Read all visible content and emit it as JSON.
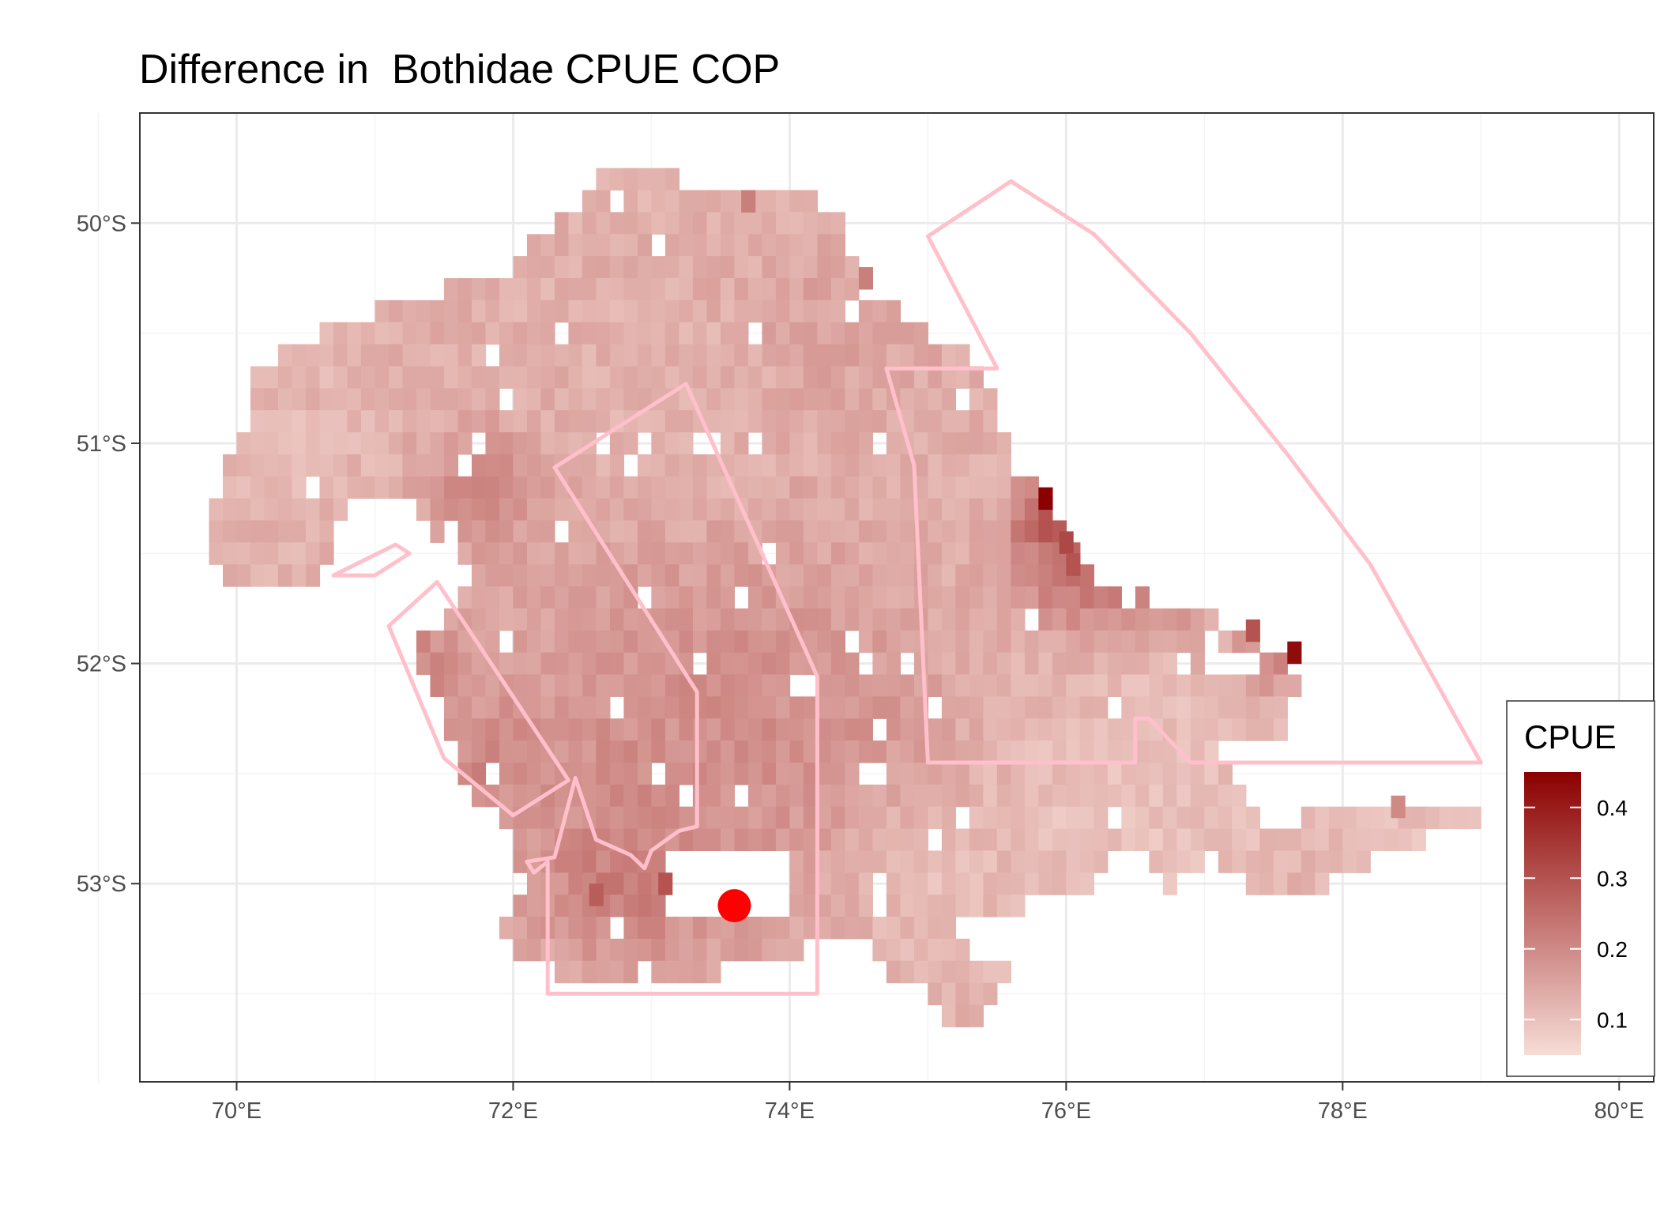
{
  "title": "Difference in  Bothidae CPUE COP",
  "x_axis": {
    "ticks": [
      {
        "value": 70,
        "label": "70°E"
      },
      {
        "value": 72,
        "label": "72°E"
      },
      {
        "value": 74,
        "label": "74°E"
      },
      {
        "value": 76,
        "label": "76°E"
      },
      {
        "value": 78,
        "label": "78°E"
      },
      {
        "value": 80,
        "label": "80°E"
      }
    ],
    "range": [
      69.3,
      80.25
    ]
  },
  "y_axis": {
    "ticks": [
      {
        "value": -50,
        "label": "50°S"
      },
      {
        "value": -51,
        "label": "51°S"
      },
      {
        "value": -52,
        "label": "52°S"
      },
      {
        "value": -53,
        "label": "53°S"
      }
    ],
    "range": [
      -53.9,
      -49.5
    ]
  },
  "legend": {
    "title": "CPUE",
    "min": 0.05,
    "max": 0.45,
    "ticks": [
      {
        "value": 0.1,
        "label": "0.1"
      },
      {
        "value": 0.2,
        "label": "0.2"
      },
      {
        "value": 0.3,
        "label": "0.3"
      },
      {
        "value": 0.4,
        "label": "0.4"
      }
    ],
    "color_low": "#f7dcd6",
    "color_high": "#8b0000",
    "position": "right"
  },
  "colors": {
    "panel_border": "#333333",
    "grid": "#ebebeb",
    "polygon_stroke": "#ffc0cb",
    "marker": "#ff0000"
  },
  "chart_data": {
    "type": "heatmap",
    "title": "Difference in  Bothidae CPUE COP",
    "xlabel": "",
    "ylabel": "",
    "xlim": [
      69.3,
      80.25
    ],
    "ylim": [
      -53.9,
      -49.5
    ],
    "value_range": [
      0.05,
      0.45
    ],
    "grid": true,
    "cell_size": {
      "lon": 0.1,
      "lat": 0.1
    },
    "cpue_field_outline": [
      [
        72.9,
        -49.7
      ],
      [
        73.2,
        -49.8
      ],
      [
        73.5,
        -49.85
      ],
      [
        73.8,
        -49.9
      ],
      [
        74.2,
        -49.9
      ],
      [
        74.4,
        -50.0
      ],
      [
        74.5,
        -50.3
      ],
      [
        74.8,
        -50.4
      ],
      [
        75.0,
        -50.5
      ],
      [
        75.3,
        -50.6
      ],
      [
        75.5,
        -50.8
      ],
      [
        75.6,
        -51.1
      ],
      [
        75.8,
        -51.2
      ],
      [
        76.0,
        -51.4
      ],
      [
        76.2,
        -51.6
      ],
      [
        76.6,
        -51.7
      ],
      [
        77.1,
        -51.8
      ],
      [
        77.5,
        -51.95
      ],
      [
        77.7,
        -52.1
      ],
      [
        77.6,
        -52.3
      ],
      [
        77.3,
        -52.4
      ],
      [
        77.7,
        -52.7
      ],
      [
        78.4,
        -52.6
      ],
      [
        79.0,
        -52.7
      ],
      [
        78.2,
        -52.9
      ],
      [
        77.8,
        -53.05
      ],
      [
        77.3,
        -53.0
      ],
      [
        76.9,
        -52.9
      ],
      [
        76.6,
        -53.2
      ],
      [
        76.0,
        -53.0
      ],
      [
        75.7,
        -53.2
      ],
      [
        75.5,
        -53.55
      ],
      [
        75.2,
        -53.7
      ],
      [
        75.0,
        -53.5
      ],
      [
        74.7,
        -53.4
      ],
      [
        74.4,
        -53.2
      ],
      [
        74.1,
        -53.3
      ],
      [
        73.9,
        -53.35
      ],
      [
        73.1,
        -53.45
      ],
      [
        72.3,
        -53.4
      ],
      [
        71.9,
        -53.25
      ],
      [
        72.1,
        -53.05
      ],
      [
        72.0,
        -52.8
      ],
      [
        71.7,
        -52.6
      ],
      [
        71.6,
        -52.4
      ],
      [
        71.4,
        -52.1
      ],
      [
        71.1,
        -52.0
      ],
      [
        71.3,
        -51.9
      ],
      [
        71.6,
        -51.75
      ],
      [
        71.7,
        -51.55
      ],
      [
        71.4,
        -51.4
      ],
      [
        71.3,
        -51.25
      ],
      [
        70.8,
        -51.3
      ],
      [
        70.6,
        -51.65
      ],
      [
        69.9,
        -51.65
      ],
      [
        69.8,
        -51.4
      ],
      [
        69.95,
        -51.1
      ],
      [
        70.1,
        -50.9
      ],
      [
        70.1,
        -50.7
      ],
      [
        70.6,
        -50.5
      ],
      [
        71.0,
        -50.4
      ],
      [
        71.5,
        -50.3
      ],
      [
        72.0,
        -50.2
      ],
      [
        72.3,
        -50.0
      ],
      [
        72.5,
        -49.9
      ],
      [
        72.7,
        -49.75
      ]
    ],
    "cpue_hotspots": [
      {
        "lon": 71.8,
        "lat": -51.2,
        "radius": 0.3,
        "value": 0.22
      },
      {
        "lon": 71.35,
        "lat": -52.0,
        "radius": 0.25,
        "value": 0.22
      },
      {
        "lon": 71.8,
        "lat": -52.45,
        "radius": 0.3,
        "value": 0.22
      },
      {
        "lon": 73.0,
        "lat": -52.6,
        "radius": 0.8,
        "value": 0.2
      },
      {
        "lon": 72.8,
        "lat": -53.0,
        "radius": 0.35,
        "value": 0.24
      },
      {
        "lon": 73.5,
        "lat": -52.1,
        "radius": 0.9,
        "value": 0.19
      },
      {
        "lon": 74.5,
        "lat": -52.5,
        "radius": 0.6,
        "value": 0.19
      },
      {
        "lon": 75.9,
        "lat": -51.35,
        "radius": 0.18,
        "value": 0.38
      },
      {
        "lon": 76.1,
        "lat": -51.6,
        "radius": 0.3,
        "value": 0.28
      },
      {
        "lon": 76.6,
        "lat": -51.7,
        "radius": 0.25,
        "value": 0.25
      },
      {
        "lon": 77.5,
        "lat": -51.95,
        "radius": 0.2,
        "value": 0.26
      },
      {
        "lon": 74.3,
        "lat": -50.5,
        "radius": 0.5,
        "value": 0.16
      },
      {
        "lon": 73.3,
        "lat": -50.9,
        "radius": 0.5,
        "value": 0.12
      },
      {
        "lon": 76.5,
        "lat": -52.6,
        "radius": 0.8,
        "value": 0.09
      },
      {
        "lon": 75.0,
        "lat": -53.0,
        "radius": 0.5,
        "value": 0.1
      },
      {
        "lon": 78.5,
        "lat": -52.8,
        "radius": 0.5,
        "value": 0.1
      },
      {
        "lon": 70.3,
        "lat": -51.0,
        "radius": 0.5,
        "value": 0.11
      }
    ],
    "cpue_isolated_cells": [
      {
        "lon": 75.85,
        "lat": -51.25,
        "value": 0.45
      },
      {
        "lon": 77.65,
        "lat": -51.95,
        "value": 0.43
      },
      {
        "lon": 77.35,
        "lat": -51.85,
        "value": 0.3
      },
      {
        "lon": 76.0,
        "lat": -51.45,
        "value": 0.32
      },
      {
        "lon": 76.05,
        "lat": -51.55,
        "value": 0.3
      },
      {
        "lon": 73.7,
        "lat": -49.9,
        "value": 0.22
      },
      {
        "lon": 74.55,
        "lat": -50.25,
        "value": 0.22
      },
      {
        "lon": 78.4,
        "lat": -52.65,
        "value": 0.2
      },
      {
        "lon": 73.1,
        "lat": -53.0,
        "value": 0.3
      },
      {
        "lon": 72.6,
        "lat": -53.05,
        "value": 0.28
      }
    ],
    "cpue_gaps": [
      [
        [
          71.45,
          -51.35
        ],
        [
          71.45,
          -51.7
        ],
        [
          71.2,
          -51.7
        ],
        [
          70.95,
          -51.6
        ],
        [
          71.2,
          -51.45
        ]
      ],
      [
        [
          71.3,
          -51.95
        ],
        [
          71.3,
          -52.25
        ],
        [
          71.1,
          -52.15
        ],
        [
          71.0,
          -52.0
        ]
      ],
      [
        [
          73.1,
          -52.88
        ],
        [
          74.0,
          -52.88
        ],
        [
          74.0,
          -53.15
        ],
        [
          73.1,
          -53.15
        ]
      ],
      [
        [
          77.0,
          -51.85
        ],
        [
          77.5,
          -52.05
        ],
        [
          77.4,
          -52.1
        ],
        [
          77.0,
          -52.05
        ]
      ],
      [
        [
          77.1,
          -52.4
        ],
        [
          77.4,
          -52.4
        ],
        [
          77.7,
          -52.75
        ],
        [
          77.4,
          -52.75
        ]
      ],
      [
        [
          76.5,
          -52.85
        ],
        [
          76.8,
          -53.1
        ],
        [
          76.4,
          -53.15
        ],
        [
          76.1,
          -52.95
        ]
      ],
      [
        [
          75.2,
          -53.15
        ],
        [
          75.8,
          -53.1
        ],
        [
          75.6,
          -53.35
        ],
        [
          75.3,
          -53.35
        ]
      ]
    ],
    "polygons": [
      {
        "id": "polygon-north-east",
        "points": [
          [
            75.0,
            -50.06
          ],
          [
            75.6,
            -49.81
          ],
          [
            76.2,
            -50.05
          ],
          [
            76.9,
            -50.5
          ],
          [
            77.6,
            -51.05
          ],
          [
            78.2,
            -51.55
          ],
          [
            78.6,
            -52.0
          ],
          [
            79.0,
            -52.45
          ],
          [
            78.4,
            -52.45
          ],
          [
            77.8,
            -52.45
          ],
          [
            77.0,
            -52.45
          ],
          [
            76.9,
            -52.45
          ],
          [
            76.6,
            -52.25
          ],
          [
            76.5,
            -52.25
          ],
          [
            76.5,
            -52.45
          ],
          [
            75.6,
            -52.45
          ],
          [
            75.0,
            -52.45
          ],
          [
            74.9,
            -51.1
          ],
          [
            74.7,
            -50.66
          ],
          [
            75.5,
            -50.66
          ]
        ]
      },
      {
        "id": "polygon-central",
        "points": [
          [
            72.3,
            -51.11
          ],
          [
            73.25,
            -50.73
          ],
          [
            74.2,
            -52.06
          ],
          [
            74.2,
            -53.5
          ],
          [
            72.25,
            -53.5
          ],
          [
            72.25,
            -52.9
          ],
          [
            72.15,
            -52.95
          ],
          [
            72.1,
            -52.9
          ],
          [
            72.3,
            -52.88
          ],
          [
            72.45,
            -52.52
          ],
          [
            72.6,
            -52.8
          ],
          [
            72.85,
            -52.87
          ],
          [
            72.95,
            -52.93
          ],
          [
            73.0,
            -52.85
          ],
          [
            73.2,
            -52.76
          ],
          [
            73.33,
            -52.74
          ],
          [
            73.33,
            -52.13
          ]
        ]
      },
      {
        "id": "polygon-west-island",
        "points": [
          [
            70.7,
            -51.6
          ],
          [
            71.15,
            -51.46
          ],
          [
            71.25,
            -51.5
          ],
          [
            71.0,
            -51.6
          ]
        ]
      },
      {
        "id": "polygon-west-strip",
        "points": [
          [
            71.45,
            -51.63
          ],
          [
            72.4,
            -52.53
          ],
          [
            72.0,
            -52.69
          ],
          [
            71.5,
            -52.43
          ],
          [
            71.1,
            -51.83
          ]
        ]
      }
    ],
    "marker": {
      "lon": 73.6,
      "lat": -53.1,
      "label": ""
    }
  }
}
